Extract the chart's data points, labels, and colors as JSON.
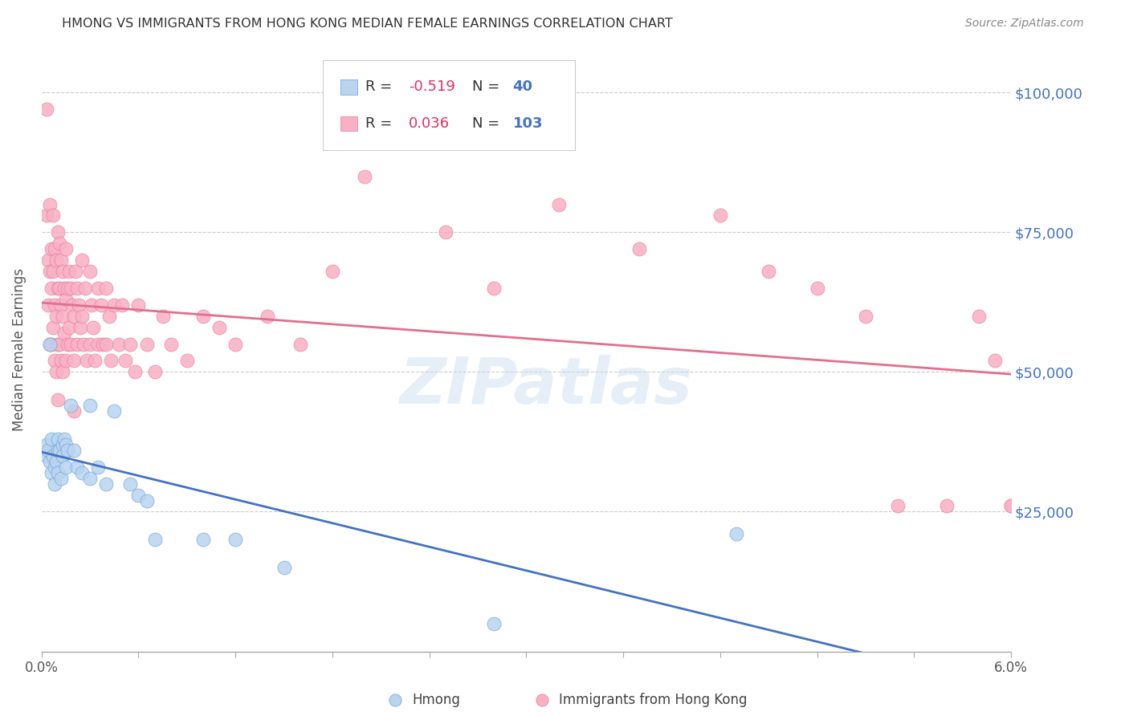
{
  "title": "HMONG VS IMMIGRANTS FROM HONG KONG MEDIAN FEMALE EARNINGS CORRELATION CHART",
  "source": "Source: ZipAtlas.com",
  "ylabel": "Median Female Earnings",
  "y_ticks": [
    0,
    25000,
    50000,
    75000,
    100000
  ],
  "y_tick_labels": [
    "",
    "$25,000",
    "$50,000",
    "$75,000",
    "$100,000"
  ],
  "x_range": [
    0.0,
    0.06
  ],
  "y_range": [
    0,
    108000
  ],
  "watermark": "ZIPatlas",
  "hmong_color_fill": "#b8d4f0",
  "hmong_color_edge": "#6ca0d0",
  "hk_color_fill": "#f9b0c4",
  "hk_color_edge": "#e8789a",
  "blue_line_color": "#4472c4",
  "pink_line_color": "#e07090",
  "legend_r1": "R = -0.519",
  "legend_n1": "N =  40",
  "legend_r2": "R =  0.036",
  "legend_n2": "N = 103",
  "legend_label1": "Hmong",
  "legend_label2": "Immigrants from Hong Kong",
  "hmong_x": [
    0.0003,
    0.0003,
    0.0004,
    0.0005,
    0.0005,
    0.0006,
    0.0006,
    0.0007,
    0.0008,
    0.0008,
    0.0009,
    0.001,
    0.001,
    0.001,
    0.0011,
    0.0012,
    0.0013,
    0.0013,
    0.0014,
    0.0015,
    0.0015,
    0.0016,
    0.0018,
    0.002,
    0.0022,
    0.0025,
    0.003,
    0.003,
    0.0035,
    0.004,
    0.0045,
    0.0055,
    0.006,
    0.0065,
    0.007,
    0.01,
    0.012,
    0.015,
    0.028,
    0.043
  ],
  "hmong_y": [
    37000,
    35000,
    36000,
    55000,
    34000,
    38000,
    32000,
    35000,
    33000,
    30000,
    34000,
    38000,
    36000,
    32000,
    36000,
    31000,
    37000,
    35000,
    38000,
    37000,
    33000,
    36000,
    44000,
    36000,
    33000,
    32000,
    44000,
    31000,
    33000,
    30000,
    43000,
    30000,
    28000,
    27000,
    20000,
    20000,
    20000,
    15000,
    5000,
    21000
  ],
  "hk_x": [
    0.0003,
    0.0003,
    0.0004,
    0.0004,
    0.0005,
    0.0005,
    0.0005,
    0.0006,
    0.0006,
    0.0006,
    0.0007,
    0.0007,
    0.0007,
    0.0008,
    0.0008,
    0.0008,
    0.0009,
    0.0009,
    0.0009,
    0.001,
    0.001,
    0.001,
    0.001,
    0.0011,
    0.0011,
    0.0011,
    0.0012,
    0.0012,
    0.0012,
    0.0013,
    0.0013,
    0.0013,
    0.0014,
    0.0014,
    0.0015,
    0.0015,
    0.0015,
    0.0016,
    0.0016,
    0.0017,
    0.0017,
    0.0018,
    0.0018,
    0.0019,
    0.002,
    0.002,
    0.002,
    0.0021,
    0.0022,
    0.0022,
    0.0023,
    0.0024,
    0.0025,
    0.0025,
    0.0026,
    0.0027,
    0.0028,
    0.003,
    0.003,
    0.0031,
    0.0032,
    0.0033,
    0.0035,
    0.0035,
    0.0037,
    0.0038,
    0.004,
    0.004,
    0.0042,
    0.0043,
    0.0045,
    0.0048,
    0.005,
    0.0052,
    0.0055,
    0.0058,
    0.006,
    0.0065,
    0.007,
    0.0075,
    0.008,
    0.009,
    0.01,
    0.011,
    0.012,
    0.014,
    0.016,
    0.018,
    0.02,
    0.025,
    0.028,
    0.032,
    0.037,
    0.042,
    0.045,
    0.048,
    0.051,
    0.053,
    0.056,
    0.058,
    0.059,
    0.06,
    0.06
  ],
  "hk_y": [
    97000,
    78000,
    70000,
    62000,
    80000,
    68000,
    55000,
    72000,
    65000,
    55000,
    78000,
    68000,
    58000,
    72000,
    62000,
    52000,
    70000,
    60000,
    50000,
    75000,
    65000,
    55000,
    45000,
    73000,
    65000,
    55000,
    70000,
    62000,
    52000,
    68000,
    60000,
    50000,
    65000,
    57000,
    72000,
    63000,
    52000,
    65000,
    55000,
    68000,
    58000,
    65000,
    55000,
    62000,
    60000,
    52000,
    43000,
    68000,
    65000,
    55000,
    62000,
    58000,
    70000,
    60000,
    55000,
    65000,
    52000,
    68000,
    55000,
    62000,
    58000,
    52000,
    65000,
    55000,
    62000,
    55000,
    65000,
    55000,
    60000,
    52000,
    62000,
    55000,
    62000,
    52000,
    55000,
    50000,
    62000,
    55000,
    50000,
    60000,
    55000,
    52000,
    60000,
    58000,
    55000,
    60000,
    55000,
    68000,
    85000,
    75000,
    65000,
    80000,
    72000,
    78000,
    68000,
    65000,
    60000,
    26000,
    26000,
    60000,
    52000,
    26000,
    26000
  ]
}
